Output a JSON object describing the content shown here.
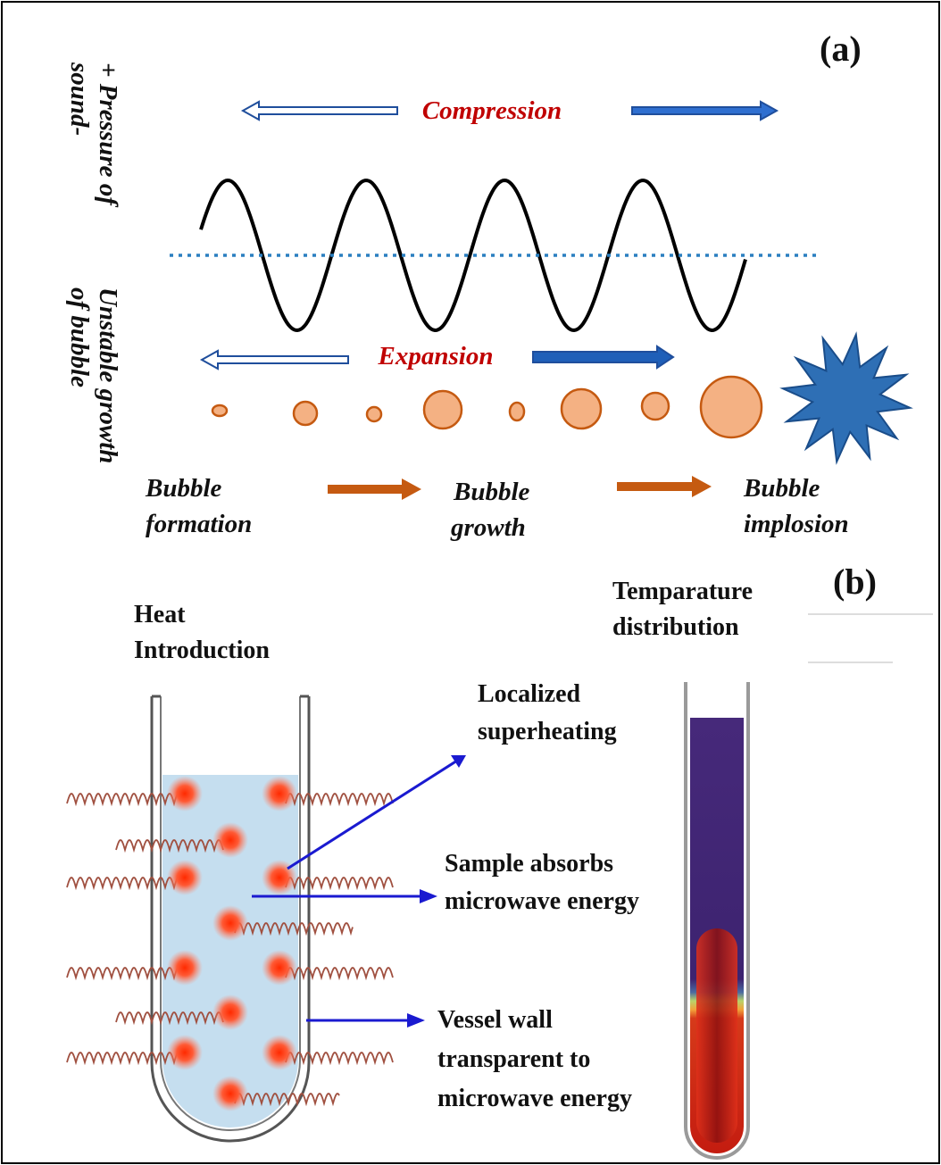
{
  "panel_a": {
    "label": "(a)",
    "axis_top": [
      "+ Pressure of",
      "sound-"
    ],
    "axis_bottom": [
      "Unstable growth",
      "of bubble"
    ],
    "compression": "Compression",
    "expansion": "Expansion",
    "stages": [
      {
        "lines": [
          "Bubble",
          "formation"
        ]
      },
      {
        "lines": [
          "Bubble",
          "growth"
        ]
      },
      {
        "lines": [
          "Bubble",
          "implosion"
        ]
      }
    ]
  },
  "panel_b": {
    "label": "(b)",
    "heat_intro": [
      "Heat",
      "Introduction"
    ],
    "temp_dist": [
      "Temparature",
      "distribution"
    ],
    "callouts": {
      "localized": [
        "Localized",
        "superheating"
      ],
      "absorbs": [
        "Sample absorbs",
        "microwave energy"
      ],
      "wall": [
        "Vessel wall",
        "transparent to",
        "microwave energy"
      ]
    }
  },
  "colors": {
    "arrow_blue": "#1f4e9c",
    "arrow_orange": "#c55a11",
    "bubble_fill": "#f4b183",
    "bubble_stroke": "#c55a11",
    "star_fill": "#2e6fb5",
    "label_red": "#c00000",
    "wave_dotted": "#2a7fc0",
    "liquid": "#c5deef",
    "hotspot": "#ff3b1a",
    "temp_cold": "#3d2370",
    "temp_hot": "#b01010"
  }
}
